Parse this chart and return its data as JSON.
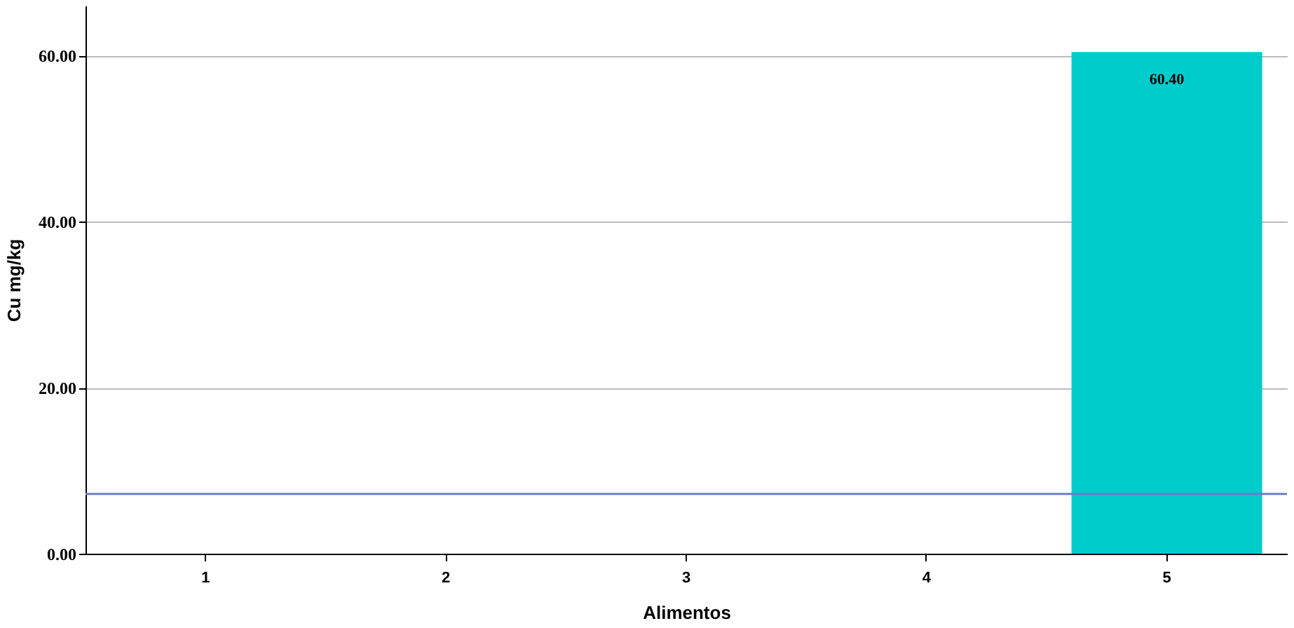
{
  "chart_data": {
    "type": "bar",
    "xlabel": "Alimentos",
    "ylabel": "Cu mg/kg",
    "categories": [
      "1",
      "2",
      "3",
      "4",
      "5"
    ],
    "values": [
      null,
      null,
      null,
      null,
      60.4
    ],
    "color": "#00cccc",
    "ylim": [
      0,
      66
    ],
    "yticks": [
      {
        "value": 0,
        "label": "0.00"
      },
      {
        "value": 20,
        "label": "20.00"
      },
      {
        "value": 40,
        "label": "40.00"
      },
      {
        "value": 60,
        "label": "60.00"
      }
    ],
    "grid": "y",
    "value_labels": [
      null,
      null,
      null,
      null,
      "60.40"
    ],
    "ref_lines": [
      {
        "axis": "y",
        "value": 7.2,
        "color": "#6a7fc8"
      }
    ]
  }
}
